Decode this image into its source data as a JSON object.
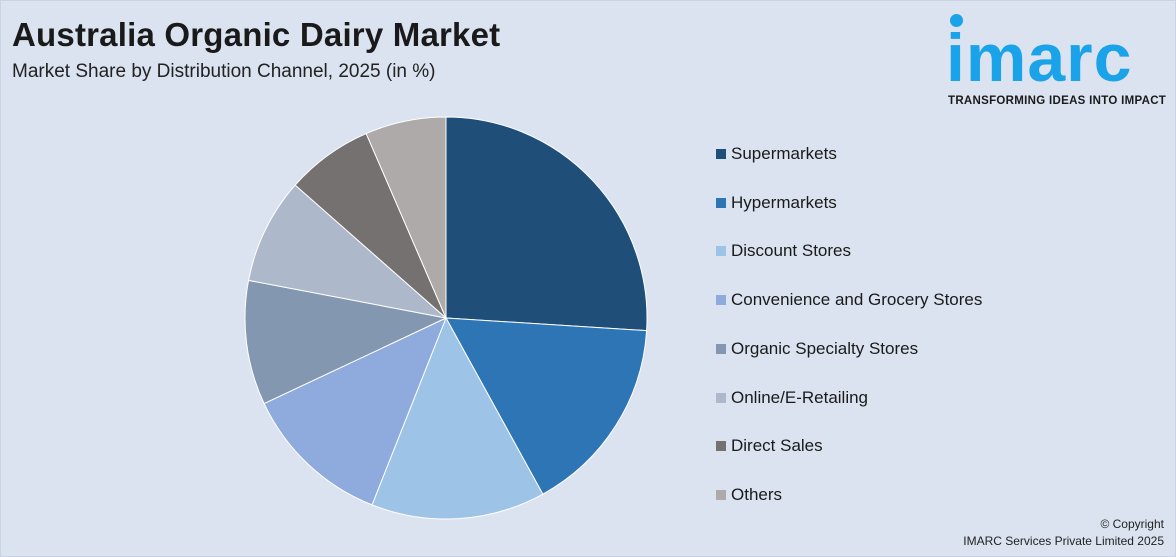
{
  "header": {
    "title": "Australia Organic Dairy Market",
    "subtitle": "Market Share by Distribution Channel, 2025 (in %)"
  },
  "logo": {
    "word": "imarc",
    "tagline": "TRANSFORMING IDEAS INTO IMPACT",
    "color": "#1aa3e8"
  },
  "footer": {
    "copyright_line1": "© Copyright",
    "copyright_line2": "IMARC Services Private Limited 2025"
  },
  "chart_data": {
    "type": "pie",
    "title": "Australia Organic Dairy Market",
    "subtitle": "Market Share by Distribution Channel, 2025 (in %)",
    "legend_position": "right",
    "categories": [
      "Supermarkets",
      "Hypermarkets",
      "Discount Stores",
      "Convenience and Grocery Stores",
      "Organic Specialty Stores",
      "Online/E-Retailing",
      "Direct Sales",
      "Others"
    ],
    "values": [
      26,
      16,
      14,
      12,
      10,
      8.5,
      7,
      6.5
    ],
    "colors": [
      "#1f4e79",
      "#2e75b6",
      "#9dc3e6",
      "#8faadc",
      "#8497b0",
      "#adb9ca",
      "#767171",
      "#aeaaaa"
    ]
  }
}
